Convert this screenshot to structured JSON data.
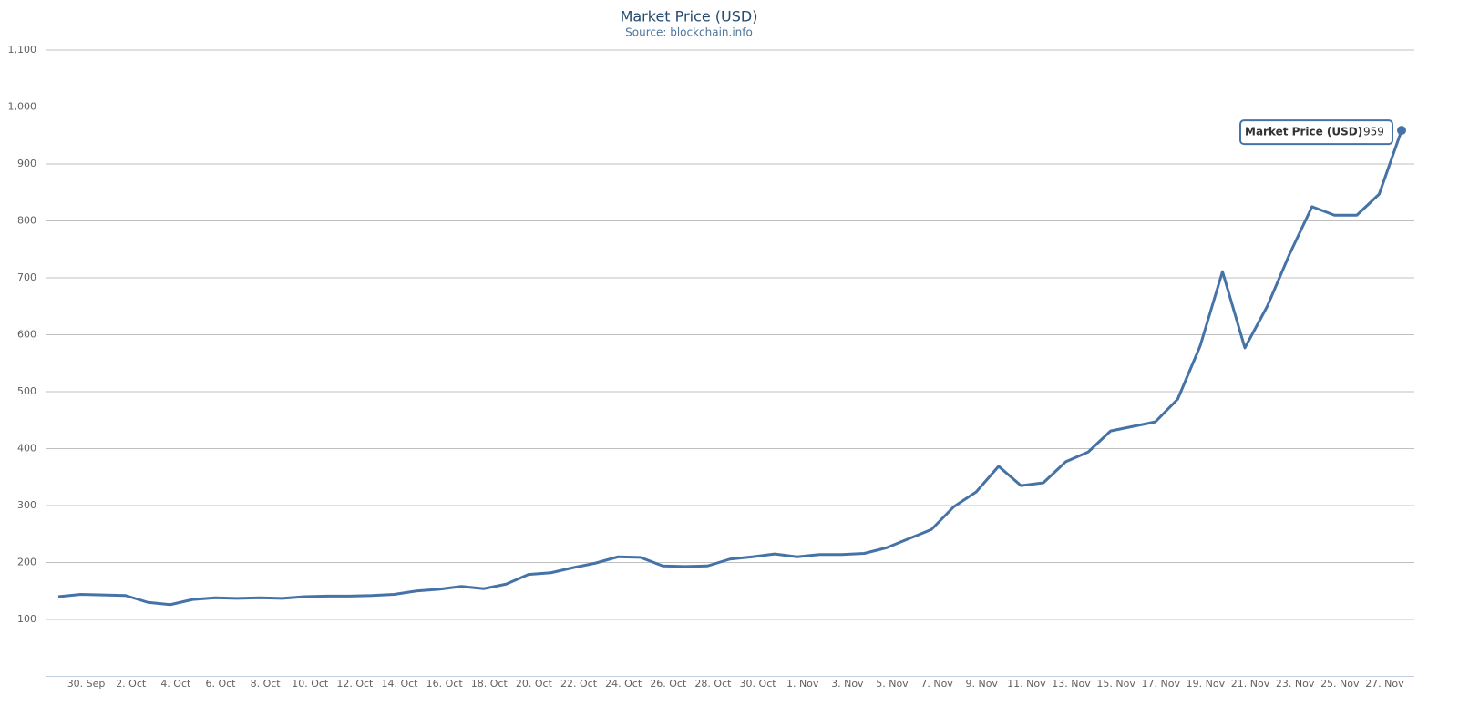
{
  "chart_data": {
    "type": "line",
    "title": "Market Price (USD)",
    "subtitle": "Source: blockchain.info",
    "categories": [
      null,
      "30. Sep",
      null,
      "2. Oct",
      null,
      "4. Oct",
      null,
      "6. Oct",
      null,
      "8. Oct",
      null,
      "10. Oct",
      null,
      "12. Oct",
      null,
      "14. Oct",
      null,
      "16. Oct",
      null,
      "18. Oct",
      null,
      "20. Oct",
      null,
      "22. Oct",
      null,
      "24. Oct",
      null,
      "26. Oct",
      null,
      "28. Oct",
      null,
      "30. Oct",
      null,
      "1. Nov",
      null,
      "3. Nov",
      null,
      "5. Nov",
      null,
      "7. Nov",
      null,
      "9. Nov",
      null,
      "11. Nov",
      null,
      "13. Nov",
      null,
      "15. Nov",
      null,
      "17. Nov",
      null,
      "19. Nov",
      null,
      "21. Nov",
      null,
      "23. Nov",
      null,
      "25. Nov",
      null,
      "27. Nov",
      null
    ],
    "series": [
      {
        "name": "Market Price (USD)",
        "color": "#4572a7",
        "values": [
          140,
          144,
          143,
          142,
          130,
          126,
          135,
          138,
          137,
          138,
          137,
          140,
          141,
          141,
          142,
          144,
          150,
          153,
          158,
          154,
          162,
          179,
          182,
          191,
          199,
          210,
          209,
          194,
          193,
          194,
          206,
          210,
          215,
          210,
          214,
          214,
          216,
          226,
          242,
          258,
          298,
          324,
          369,
          335,
          340,
          377,
          394,
          431,
          439,
          447,
          487,
          580,
          711,
          577,
          650,
          742,
          825,
          810,
          810,
          847,
          959
        ]
      }
    ],
    "ylim": [
      0,
      1100
    ],
    "yticks": [
      100,
      200,
      300,
      400,
      500,
      600,
      700,
      800,
      900,
      {
        "value": 1000,
        "label": "1,000"
      },
      {
        "value": 1100,
        "label": "1,100"
      }
    ],
    "grid": true
  }
}
